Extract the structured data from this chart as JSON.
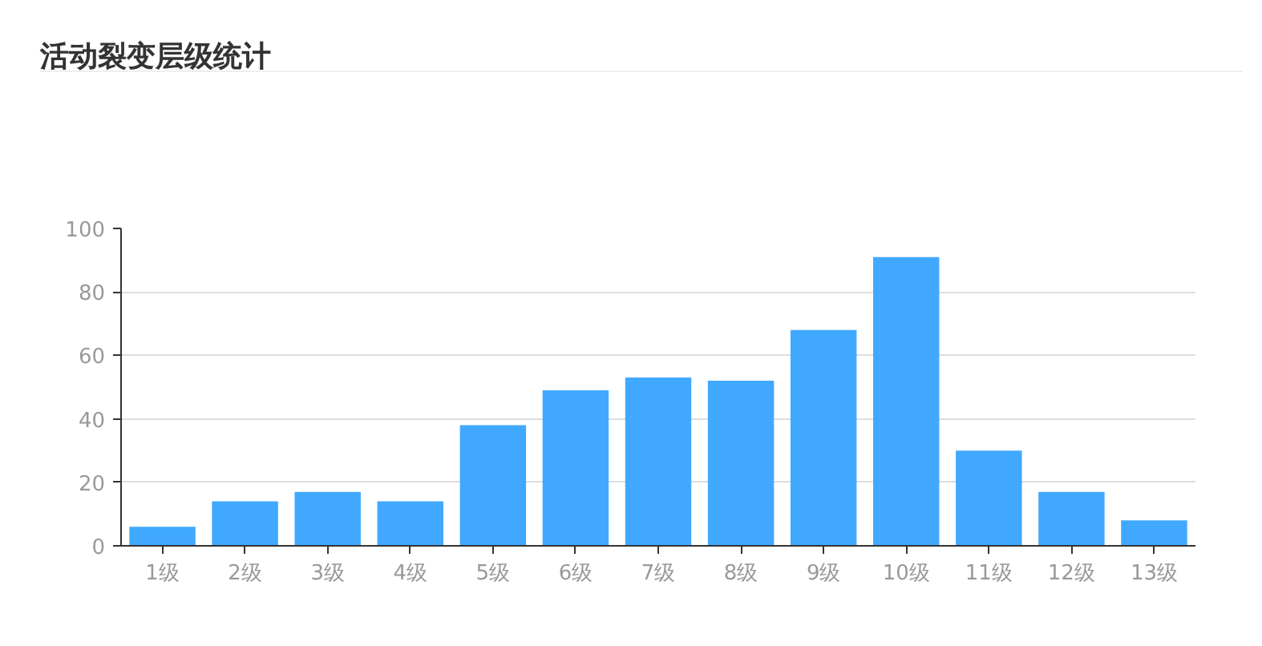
{
  "chart_data": {
    "type": "bar",
    "title": "活动裂变层级统计",
    "categories": [
      "1级",
      "2级",
      "3级",
      "4级",
      "5级",
      "6级",
      "7级",
      "8级",
      "9级",
      "10级",
      "11级",
      "12级",
      "13级"
    ],
    "values": [
      6,
      14,
      17,
      14,
      38,
      49,
      53,
      52,
      68,
      91,
      30,
      17,
      8
    ],
    "color": "#40a9ff",
    "ylim": [
      0,
      100
    ],
    "yticks": [
      0,
      20,
      40,
      60,
      80,
      100
    ],
    "grid": "y"
  }
}
